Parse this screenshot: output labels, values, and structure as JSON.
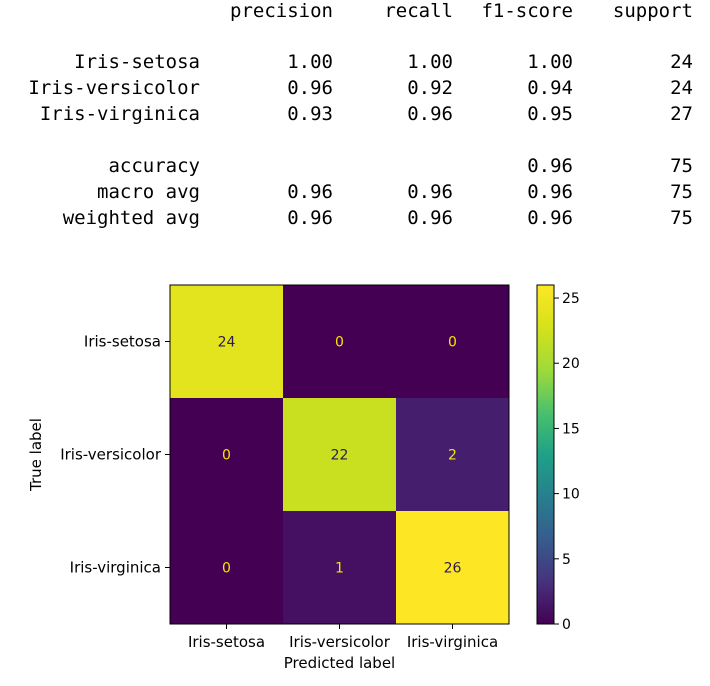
{
  "report": {
    "header": [
      "precision",
      "recall",
      "f1-score",
      "support"
    ],
    "rows": [
      {
        "label": "Iris-setosa",
        "precision": "1.00",
        "recall": "1.00",
        "f1": "1.00",
        "support": "24"
      },
      {
        "label": "Iris-versicolor",
        "precision": "0.96",
        "recall": "0.92",
        "f1": "0.94",
        "support": "24"
      },
      {
        "label": "Iris-virginica",
        "precision": "0.93",
        "recall": "0.96",
        "f1": "0.95",
        "support": "27"
      }
    ],
    "summary": [
      {
        "label": "accuracy",
        "precision": "",
        "recall": "",
        "f1": "0.96",
        "support": "75"
      },
      {
        "label": "macro avg",
        "precision": "0.96",
        "recall": "0.96",
        "f1": "0.96",
        "support": "75"
      },
      {
        "label": "weighted avg",
        "precision": "0.96",
        "recall": "0.96",
        "f1": "0.96",
        "support": "75"
      }
    ]
  },
  "chart_data": {
    "type": "heatmap",
    "title": "",
    "xlabel": "Predicted label",
    "ylabel": "True label",
    "x_categories": [
      "Iris-setosa",
      "Iris-versicolor",
      "Iris-virginica"
    ],
    "y_categories": [
      "Iris-setosa",
      "Iris-versicolor",
      "Iris-virginica"
    ],
    "values": [
      [
        24,
        0,
        0
      ],
      [
        0,
        22,
        2
      ],
      [
        0,
        1,
        26
      ]
    ],
    "colormap": "viridis",
    "colorbar": {
      "min": 0,
      "max": 26,
      "ticks": [
        0,
        5,
        10,
        15,
        20,
        25
      ]
    },
    "low_value_text_color": "#f5e600",
    "high_value_text_color": "#2d1b4e"
  }
}
